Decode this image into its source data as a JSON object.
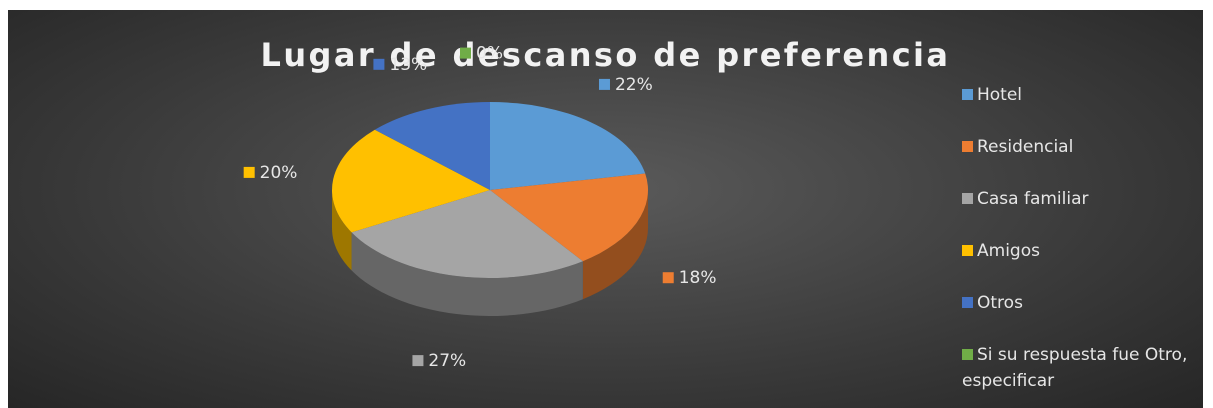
{
  "chart_data": {
    "type": "pie",
    "title": "Lugar de descanso de preferencia",
    "categories": [
      "Hotel",
      "Residencial",
      "Casa familiar",
      "Amigos",
      "Otros",
      "Si su respuesta fue Otro, especificar"
    ],
    "values": [
      22,
      18,
      27,
      20,
      13,
      0
    ],
    "value_labels": [
      "22%",
      "18%",
      "27%",
      "20%",
      "13%",
      "0%"
    ],
    "colors": [
      "#5b9bd5",
      "#ed7d31",
      "#a5a5a5",
      "#ffc000",
      "#4472c4",
      "#70ad47"
    ],
    "legend": "right"
  }
}
